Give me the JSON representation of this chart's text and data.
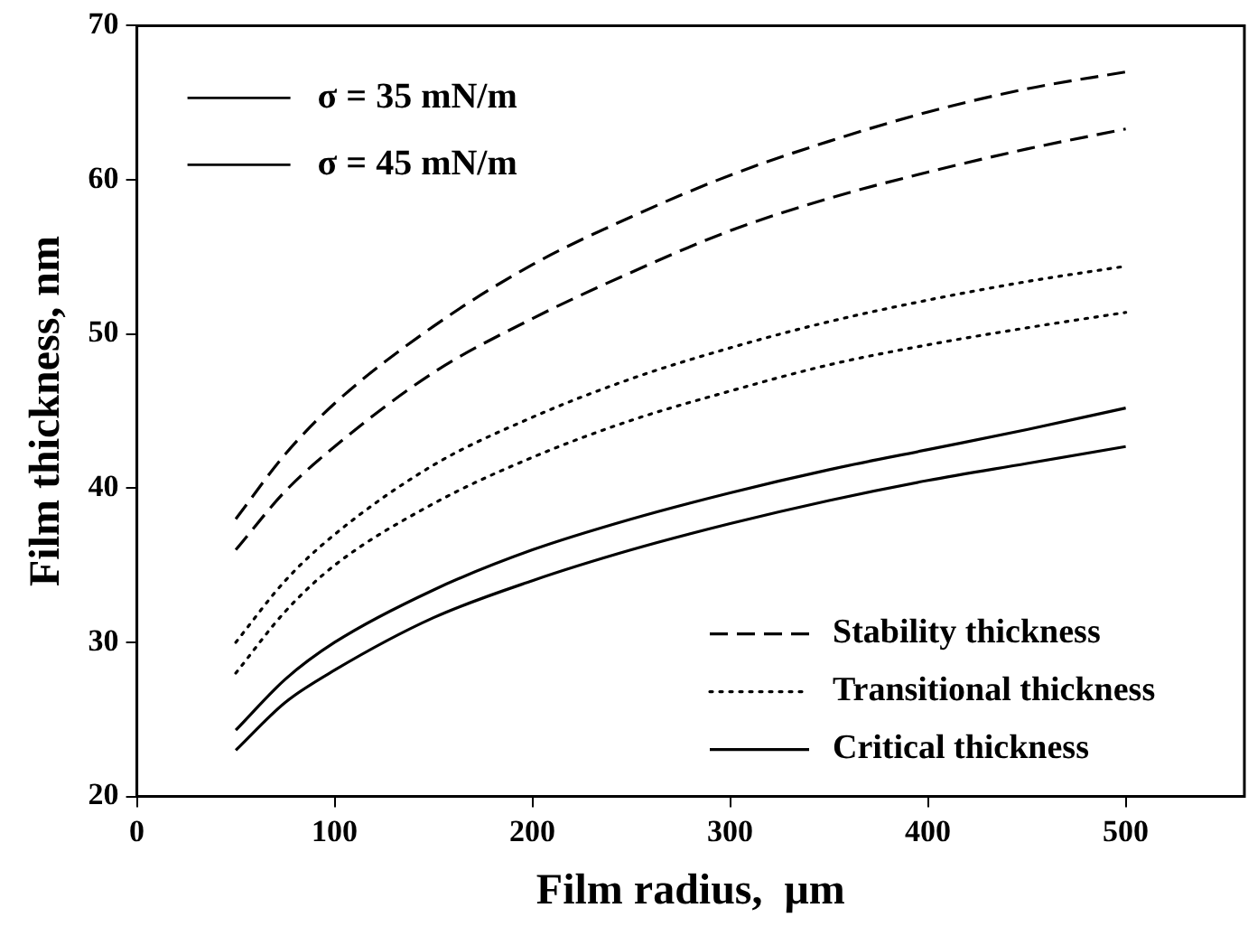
{
  "chart_data": {
    "type": "line",
    "xlabel": "Film radius,  μm",
    "ylabel": "Film thickness, nm",
    "x": [
      50,
      75,
      100,
      150,
      200,
      250,
      300,
      350,
      400,
      450,
      500
    ],
    "series": [
      {
        "name": "Stability thickness",
        "color": "#000000",
        "line_style": "dashed",
        "values": [
          38,
          42.2,
          45.5,
          50.5,
          54.5,
          57.6,
          60.3,
          62.5,
          64.4,
          65.9,
          67
        ]
      },
      {
        "color": "#000000",
        "line_style": "dashed",
        "values": [
          36,
          39.8,
          42.7,
          47.5,
          51,
          54,
          56.7,
          58.8,
          60.5,
          62,
          63.3
        ]
      },
      {
        "name": "Transitional thickness",
        "color": "#000000",
        "line_style": "dotted",
        "values": [
          30,
          34,
          37,
          41.5,
          44.6,
          47.1,
          49.1,
          50.8,
          52.2,
          53.4,
          54.4
        ]
      },
      {
        "color": "#000000",
        "line_style": "dotted",
        "values": [
          28,
          32,
          35,
          39,
          42,
          44.4,
          46.3,
          48,
          49.3,
          50.4,
          51.4
        ]
      },
      {
        "name": "Critical thickness",
        "color": "#000000",
        "line_style": "solid",
        "values": [
          24.3,
          27.6,
          30,
          33.4,
          36,
          38,
          39.7,
          41.2,
          42.5,
          43.8,
          45.2
        ]
      },
      {
        "color": "#000000",
        "line_style": "solid",
        "values": [
          23,
          26.1,
          28.2,
          31.6,
          34,
          36,
          37.7,
          39.2,
          40.5,
          41.6,
          42.7
        ]
      }
    ],
    "xlim": [
      0,
      560
    ],
    "xticks": [
      0,
      100,
      200,
      300,
      400,
      500
    ],
    "ylim": [
      20,
      70
    ],
    "yticks": [
      20,
      30,
      40,
      50,
      60,
      70
    ],
    "grid": false,
    "legend": "bottom right",
    "marker": "none",
    "annotations": [
      "σ = 35 mN/m",
      "σ = 45 mN/m"
    ]
  }
}
